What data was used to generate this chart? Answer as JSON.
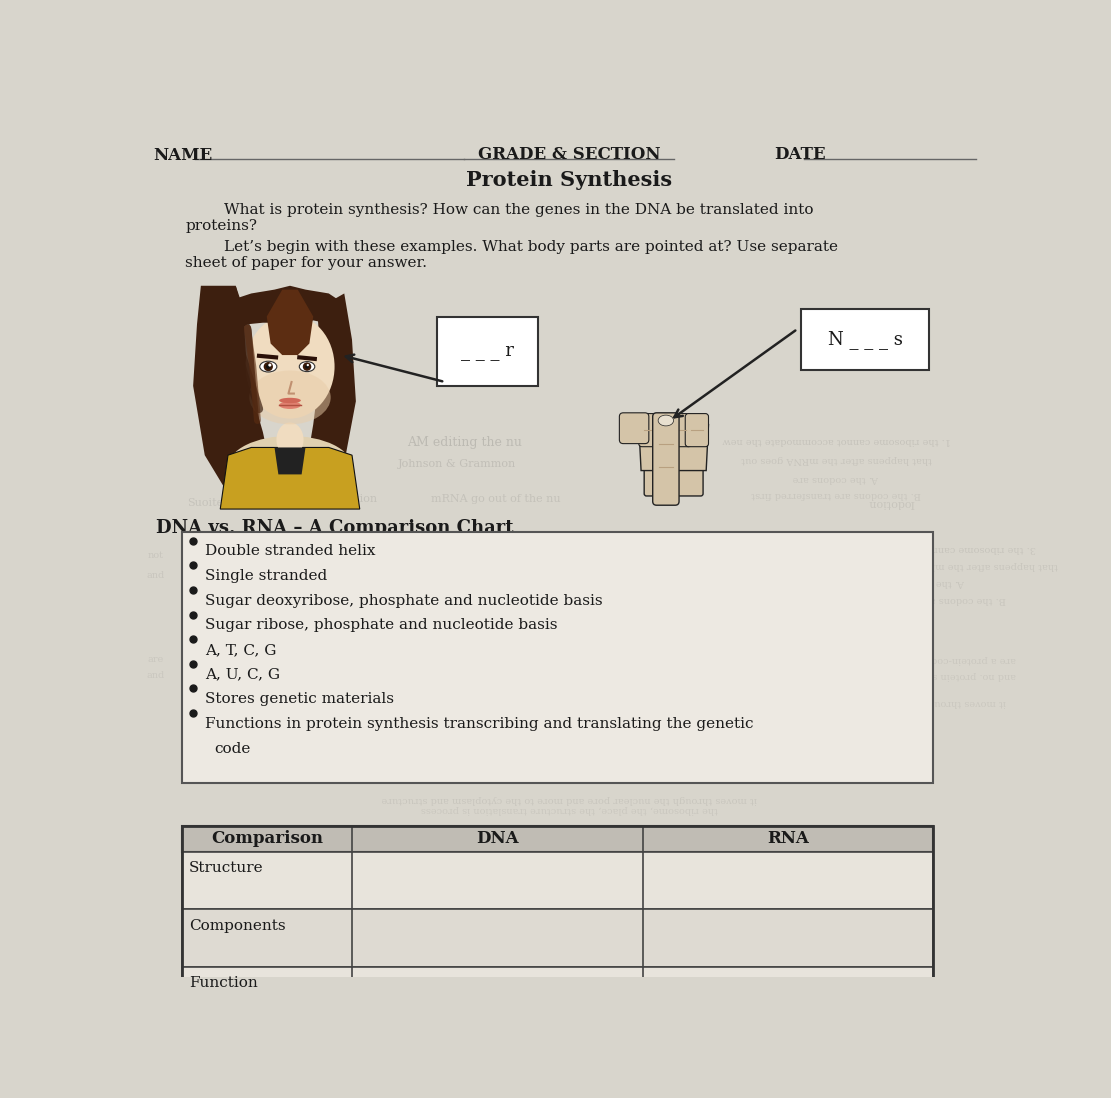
{
  "page_bg": "#d8d5cc",
  "text_color": "#1a1a1a",
  "title_name": "NAME",
  "title_grade": "GRADE & SECTION",
  "title_date": "DATE",
  "subtitle": "Protein Synthesis",
  "para1_line1": "        What is protein synthesis? How can the genes in the DNA be translated into",
  "para1_line2": "proteins?",
  "para2_line1": "        Let’s begin with these examples. What body parts are pointed at? Use separate",
  "para2_line2": "sheet of paper for your answer.",
  "box1_text": "_ _ _ r",
  "box2_text": "N _ _ _ s",
  "section_title": "DNA vs. RNA – A Comparison Chart",
  "bullet_points": [
    "Double stranded helix",
    "Single stranded",
    "Sugar deoxyribose, phosphate and nucleotide basis",
    "Sugar ribose, phosphate and nucleotide basis",
    "A, T, C, G",
    "A, U, C, G",
    "Stores genetic materials",
    "Functions in protein synthesis transcribing and translating the genetic",
    "code"
  ],
  "table_headers": [
    "Comparison",
    "DNA",
    "RNA"
  ],
  "table_rows": [
    "Structure",
    "Components",
    "Function"
  ],
  "bullet_box_bg": "#ede9e2",
  "table_header_bg": "#c0bcb4",
  "table_row_bg": "#dedad4",
  "line_color": "#555555"
}
